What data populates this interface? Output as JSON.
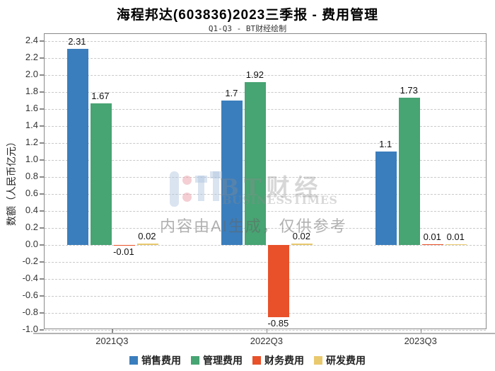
{
  "title": "海程邦达(603836)2023三季报 - 费用管理",
  "subtitle": "Q1-Q3 - BT财经绘制",
  "watermark": {
    "brand_cn": "BT财经",
    "brand_en": "BUSINESSTIMES",
    "disclaimer": "内容由AI生成，仅供参考"
  },
  "chart_data": {
    "type": "bar",
    "title": "海程邦达(603836)2023三季报 - 费用管理",
    "subtitle": "Q1-Q3 - BT财经绘制",
    "xlabel": "",
    "ylabel": "数额（人民币亿元）",
    "categories": [
      "2021Q3",
      "2022Q3",
      "2023Q3"
    ],
    "series": [
      {
        "name": "销售费用",
        "color": "#3a7ebd",
        "values": [
          2.31,
          1.7,
          1.1
        ],
        "labels": [
          "2.31",
          "1.7",
          "1.1"
        ]
      },
      {
        "name": "管理费用",
        "color": "#47a473",
        "values": [
          1.67,
          1.92,
          1.73
        ],
        "labels": [
          "1.67",
          "1.92",
          "1.73"
        ]
      },
      {
        "name": "财务费用",
        "color": "#e8512a",
        "values": [
          -0.01,
          -0.85,
          0.01
        ],
        "labels": [
          "-0.01",
          "-0.85",
          "0.01"
        ]
      },
      {
        "name": "研发费用",
        "color": "#e9c96e",
        "values": [
          0.02,
          0.02,
          0.01
        ],
        "labels": [
          "0.02",
          "0.02",
          "0.01"
        ]
      }
    ],
    "ylim": [
      -1.0,
      2.4
    ],
    "ytick_step": 0.2,
    "grid": "dashed-horizontal",
    "legend_position": "bottom"
  }
}
